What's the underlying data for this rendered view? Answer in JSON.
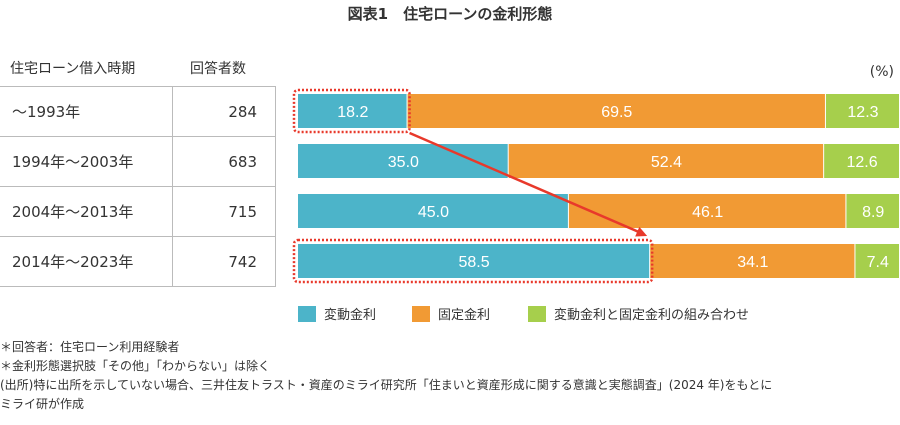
{
  "title": "図表1　住宅ローンの金利形態",
  "table": {
    "headers": [
      "住宅ローン借入時期",
      "回答者数"
    ],
    "rows": [
      {
        "period": "〜1993年",
        "n": "284"
      },
      {
        "period": "1994年〜2003年",
        "n": "683"
      },
      {
        "period": "2004年〜2013年",
        "n": "715"
      },
      {
        "period": "2014年〜2023年",
        "n": "742"
      }
    ]
  },
  "chart_data": {
    "type": "bar",
    "stacked": true,
    "orientation": "horizontal",
    "unit": "(%)",
    "categories": [
      "〜1993年",
      "1994年〜2003年",
      "2004年〜2013年",
      "2014年〜2023年"
    ],
    "series": [
      {
        "name": "変動金利",
        "color": "#4cb4c9",
        "values": [
          18.2,
          35.0,
          45.0,
          58.5
        ]
      },
      {
        "name": "固定金利",
        "color": "#f19a34",
        "values": [
          69.5,
          52.4,
          46.1,
          34.1
        ]
      },
      {
        "name": "変動金利と固定金利の組み合わせ",
        "color": "#a6cf4c",
        "values": [
          12.3,
          12.6,
          8.9,
          7.4
        ]
      }
    ],
    "annotation": {
      "highlight_color": "#e8392b",
      "from": "〜1993年 変動金利",
      "to": "2014年〜2023年 変動金利"
    }
  },
  "notes": [
    "＊回答者：住宅ローン利用経験者",
    "＊金利形態選択肢「その他」「わからない」は除く",
    "(出所)特に出所を示していない場合、三井住友トラスト・資産のミライ研究所「住まいと資産形成に関する意識と実態調査」(2024 年)をもとに",
    "ミライ研が作成"
  ]
}
